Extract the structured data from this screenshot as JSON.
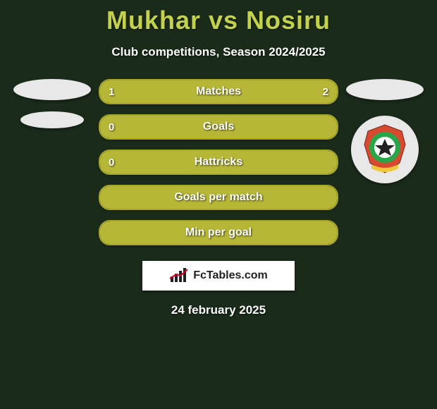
{
  "header": {
    "title": "Mukhar vs Nosiru",
    "title_color": "#c4d14a",
    "title_fontsize": 36,
    "subtitle": "Club competitions, Season 2024/2025",
    "subtitle_fontsize": 17
  },
  "colors": {
    "page_bg": "#1a2b1a",
    "bar_border": "#a6a528",
    "bar_fill": "#b6b637",
    "bar_empty": "#2a3a2a",
    "oval": "#e8e8e8",
    "logo_bg": "#ffffff",
    "logo_text": "#222222"
  },
  "stats": [
    {
      "label": "Matches",
      "left_value": "1",
      "right_value": "2",
      "left_width_pct": 33,
      "right_width_pct": 67,
      "show_left": true,
      "show_right": true
    },
    {
      "label": "Goals",
      "left_value": "0",
      "right_value": "",
      "left_width_pct": 100,
      "right_width_pct": 0,
      "show_left": true,
      "show_right": false
    },
    {
      "label": "Hattricks",
      "left_value": "0",
      "right_value": "",
      "left_width_pct": 100,
      "right_width_pct": 0,
      "show_left": true,
      "show_right": false
    },
    {
      "label": "Goals per match",
      "left_value": "",
      "right_value": "",
      "left_width_pct": 100,
      "right_width_pct": 0,
      "show_left": false,
      "show_right": false
    },
    {
      "label": "Min per goal",
      "left_value": "",
      "right_value": "",
      "left_width_pct": 100,
      "right_width_pct": 0,
      "show_left": false,
      "show_right": false
    }
  ],
  "left_player": {
    "avatar_shape": "oval",
    "club_shape": "oval-small"
  },
  "right_player": {
    "avatar_shape": "oval",
    "club_badge": {
      "bg": "#e8e8e8",
      "crest_ribbon": "#d84a2f",
      "crest_center": "#2aa64a",
      "ball": "#ffffff"
    }
  },
  "logo": {
    "text": "FcTables.com",
    "icon": "bar-chart-icon"
  },
  "footer": {
    "date": "24 february 2025",
    "date_fontsize": 17
  }
}
